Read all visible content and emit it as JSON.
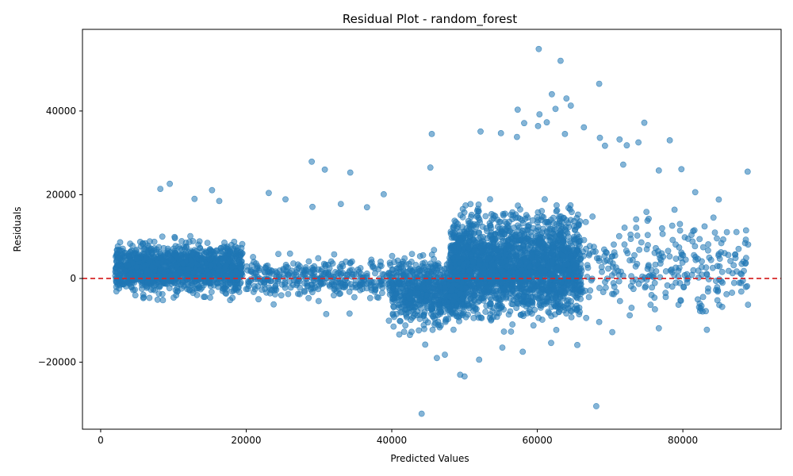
{
  "chart_data": {
    "type": "scatter",
    "title": "Residual Plot - random_forest",
    "xlabel": "Predicted Values",
    "ylabel": "Residuals",
    "xlim": [
      -2500,
      93500
    ],
    "ylim": [
      -36000,
      59500
    ],
    "xticks": [
      0,
      20000,
      40000,
      60000,
      80000
    ],
    "yticks": [
      -20000,
      0,
      20000,
      40000
    ],
    "xtick_labels": [
      "0",
      "20000",
      "40000",
      "60000",
      "80000"
    ],
    "ytick_labels": [
      "−20000",
      "0",
      "20000",
      "40000"
    ],
    "grid": false,
    "point_color": "#1f77b4",
    "point_alpha": 0.55,
    "reference_line": {
      "y": 0,
      "color": "#d62728",
      "style": "dashed"
    },
    "clusters": [
      {
        "x_range": [
          2000,
          19500
        ],
        "y_center": 2500,
        "y_spread": 4500,
        "count": 1400
      },
      {
        "x_range": [
          20000,
          40000
        ],
        "y_center": 0,
        "y_spread": 3500,
        "count": 350
      },
      {
        "x_range": [
          40000,
          50000
        ],
        "y_center": -3000,
        "y_spread": 6000,
        "count": 700
      },
      {
        "x_range": [
          48000,
          66000
        ],
        "y_center": 3000,
        "y_spread": 9000,
        "count": 2300
      },
      {
        "x_range": [
          66000,
          89000
        ],
        "y_center": 3000,
        "y_spread": 9000,
        "count": 260
      }
    ],
    "points": [
      [
        60200,
        54800
      ],
      [
        63200,
        52000
      ],
      [
        68500,
        46500
      ],
      [
        62000,
        44000
      ],
      [
        64000,
        43000
      ],
      [
        62500,
        40500
      ],
      [
        57300,
        40300
      ],
      [
        60300,
        39200
      ],
      [
        64600,
        41300
      ],
      [
        74700,
        37200
      ],
      [
        66400,
        36100
      ],
      [
        60100,
        36400
      ],
      [
        61300,
        37300
      ],
      [
        58200,
        37100
      ],
      [
        63800,
        34500
      ],
      [
        78200,
        33000
      ],
      [
        45500,
        34500
      ],
      [
        52200,
        35100
      ],
      [
        68600,
        33600
      ],
      [
        72300,
        31800
      ],
      [
        73900,
        32500
      ],
      [
        69300,
        31700
      ],
      [
        71300,
        33200
      ],
      [
        55000,
        34700
      ],
      [
        57200,
        33800
      ],
      [
        88900,
        25500
      ],
      [
        79800,
        26100
      ],
      [
        81700,
        20600
      ],
      [
        71800,
        27200
      ],
      [
        76700,
        25800
      ],
      [
        29000,
        27900
      ],
      [
        30800,
        26000
      ],
      [
        45300,
        26500
      ],
      [
        34300,
        25300
      ],
      [
        9500,
        22600
      ],
      [
        8200,
        21400
      ],
      [
        15300,
        21100
      ],
      [
        23100,
        20400
      ],
      [
        25400,
        18900
      ],
      [
        38900,
        20100
      ],
      [
        36600,
        17000
      ],
      [
        29100,
        17100
      ],
      [
        33000,
        17800
      ],
      [
        16300,
        18500
      ],
      [
        12900,
        19000
      ],
      [
        44100,
        -32300
      ],
      [
        68100,
        -30500
      ],
      [
        50000,
        -23400
      ],
      [
        49400,
        -23000
      ],
      [
        46200,
        -19000
      ],
      [
        52000,
        -19400
      ],
      [
        58000,
        -17500
      ],
      [
        47300,
        -18200
      ],
      [
        44600,
        -15800
      ],
      [
        55200,
        -16500
      ],
      [
        61900,
        -15400
      ],
      [
        65500,
        -15900
      ],
      [
        76700,
        -11900
      ],
      [
        70300,
        -12800
      ],
      [
        31000,
        -8500
      ],
      [
        34200,
        -8400
      ],
      [
        39600,
        -10100
      ],
      [
        68500,
        -10400
      ],
      [
        72700,
        -8800
      ],
      [
        80100,
        -2000
      ],
      [
        85000,
        -200
      ],
      [
        88700,
        4900
      ],
      [
        83300,
        900
      ],
      [
        86300,
        1800
      ],
      [
        82300,
        9400
      ],
      [
        78600,
        9200
      ],
      [
        75000,
        15900
      ],
      [
        77300,
        5200
      ],
      [
        73100,
        4400
      ],
      [
        79600,
        13000
      ]
    ]
  }
}
